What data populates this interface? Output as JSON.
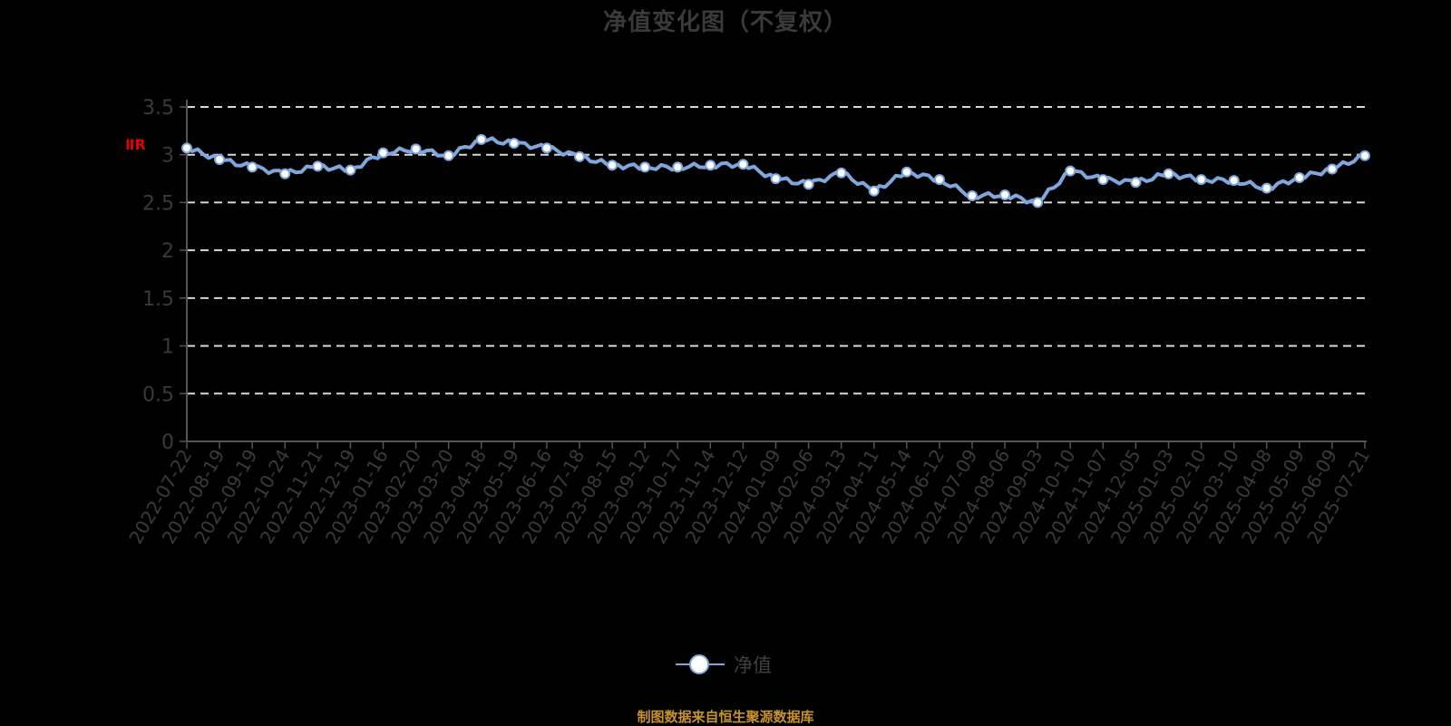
{
  "title": "净值变化图（不复权）",
  "legend": {
    "label": "净值",
    "color": "#7fa6dd"
  },
  "footer": "制图数据来自恒生聚源数据库",
  "ylabel_tag": "ⅡR",
  "chart_data": {
    "type": "line",
    "title": "净值变化图（不复权）",
    "xlabel": "",
    "ylabel": "",
    "ylim": [
      0,
      3.5
    ],
    "yticks": [
      0,
      0.5,
      1,
      1.5,
      2,
      2.5,
      3,
      3.5
    ],
    "grid": true,
    "legend_position": "bottom",
    "categories": [
      "2022-07-22",
      "2022-08-19",
      "2022-09-19",
      "2022-10-24",
      "2022-11-21",
      "2022-12-19",
      "2023-01-16",
      "2023-02-20",
      "2023-03-20",
      "2023-04-18",
      "2023-05-19",
      "2023-06-16",
      "2023-07-18",
      "2023-08-15",
      "2023-09-12",
      "2023-10-17",
      "2023-11-14",
      "2023-12-12",
      "2024-01-09",
      "2024-02-06",
      "2024-03-13",
      "2024-04-11",
      "2024-05-14",
      "2024-06-12",
      "2024-07-09",
      "2024-08-06",
      "2024-09-03",
      "2024-10-10",
      "2024-11-07",
      "2024-12-05",
      "2025-01-03",
      "2025-02-10",
      "2025-03-10",
      "2025-04-08",
      "2025-05-09",
      "2025-06-09",
      "2025-07-21"
    ],
    "series": [
      {
        "name": "净值",
        "color": "#7fa6dd",
        "values": [
          3.07,
          2.95,
          2.87,
          2.8,
          2.88,
          2.84,
          3.02,
          3.06,
          2.99,
          3.16,
          3.12,
          3.07,
          2.98,
          2.89,
          2.87,
          2.87,
          2.89,
          2.9,
          2.75,
          2.69,
          2.81,
          2.62,
          2.82,
          2.74,
          2.57,
          2.58,
          2.5,
          2.83,
          2.74,
          2.71,
          2.8,
          2.74,
          2.73,
          2.65,
          2.76,
          2.85,
          2.99
        ]
      }
    ]
  }
}
